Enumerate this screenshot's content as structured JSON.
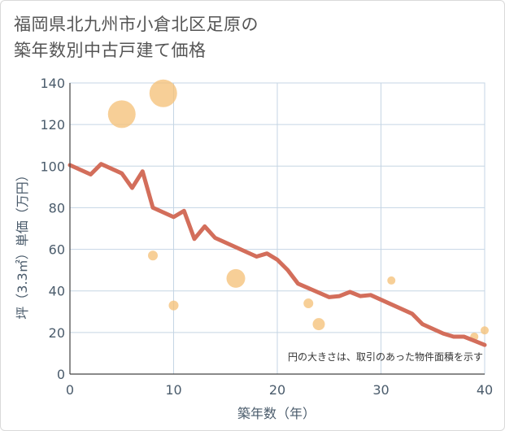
{
  "title_line1": "福岡県北九州市小倉北区足原の",
  "title_line2": "築年数別中古戸建て価格",
  "chart_data": {
    "type": "scatter+line",
    "xlabel": "築年数（年）",
    "ylabel": "坪（3.3㎡）単価（万円）",
    "xlim": [
      0,
      40
    ],
    "ylim": [
      0,
      140
    ],
    "xticks": [
      0,
      10,
      20,
      30,
      40
    ],
    "yticks": [
      0,
      20,
      40,
      60,
      80,
      100,
      120,
      140
    ],
    "grid": true,
    "note": "円の大きさは、取引のあった物件面積を示す",
    "colors": {
      "line": "#d36e5b",
      "bubble": "#f5c27a",
      "grid": "#c5d5e4",
      "axis_text": "#4a5b6b"
    },
    "bubbles": [
      {
        "x": 5,
        "y": 125,
        "size": 3
      },
      {
        "x": 9,
        "y": 135,
        "size": 3
      },
      {
        "x": 8,
        "y": 57,
        "size": 1
      },
      {
        "x": 10,
        "y": 33,
        "size": 1
      },
      {
        "x": 16,
        "y": 46,
        "size": 2
      },
      {
        "x": 23,
        "y": 34,
        "size": 1
      },
      {
        "x": 24,
        "y": 24,
        "size": 1.2
      },
      {
        "x": 31,
        "y": 45,
        "size": 0.8
      },
      {
        "x": 39,
        "y": 18,
        "size": 0.8
      },
      {
        "x": 40,
        "y": 21,
        "size": 0.8
      }
    ],
    "line": {
      "x": [
        0,
        2,
        3,
        5,
        6,
        7,
        8,
        10,
        11,
        12,
        13,
        14,
        16,
        18,
        19,
        20,
        21,
        22,
        25,
        26,
        27,
        28,
        29,
        31,
        33,
        34,
        36,
        37,
        38,
        39,
        40
      ],
      "y": [
        100.5,
        96,
        101,
        96.5,
        89.5,
        97.5,
        80,
        75.5,
        78.5,
        65,
        71,
        65.5,
        61,
        56.5,
        58,
        55,
        50,
        43.5,
        37,
        37.5,
        39.5,
        37.5,
        38,
        33.5,
        29,
        24,
        19.5,
        18,
        18,
        16,
        14
      ]
    }
  }
}
